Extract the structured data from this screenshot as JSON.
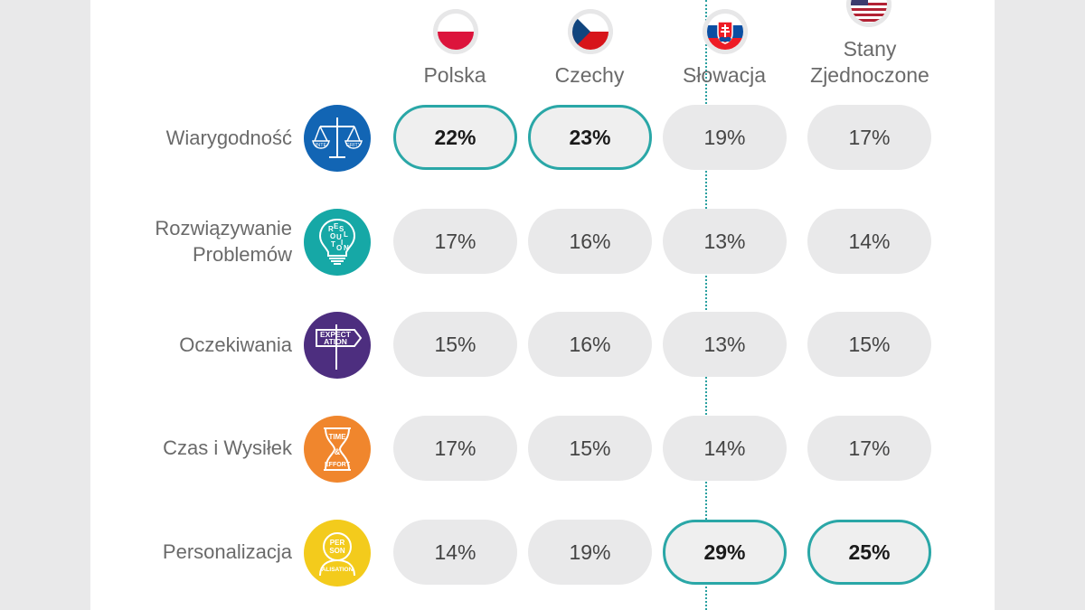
{
  "chart_data": {
    "type": "table",
    "columns": [
      "Polska",
      "Czechy",
      "Słowacja",
      "Stany Zjednoczone"
    ],
    "column_label_lines": [
      [
        "Polska"
      ],
      [
        "Czechy"
      ],
      [
        "Słowacja"
      ],
      [
        "Stany",
        "Zjednoczone"
      ]
    ],
    "rows": [
      {
        "label_lines": [
          "Wiarygodność"
        ],
        "icon": "integrity-scales-icon",
        "icon_color": "#1265b4",
        "values": [
          "22%",
          "23%",
          "19%",
          "17%"
        ],
        "highlight": [
          true,
          true,
          false,
          false
        ]
      },
      {
        "label_lines": [
          "Rozwiązywanie",
          "Problemów"
        ],
        "icon": "resolution-lightbulb-icon",
        "icon_color": "#16a8a6",
        "values": [
          "17%",
          "16%",
          "13%",
          "14%"
        ],
        "highlight": [
          false,
          false,
          false,
          false
        ]
      },
      {
        "label_lines": [
          "Oczekiwania"
        ],
        "icon": "expectation-signpost-icon",
        "icon_color": "#4d2e7f",
        "values": [
          "15%",
          "16%",
          "13%",
          "15%"
        ],
        "highlight": [
          false,
          false,
          false,
          false
        ]
      },
      {
        "label_lines": [
          "Czas i Wysiłek"
        ],
        "icon": "time-effort-hourglass-icon",
        "icon_color": "#f0862d",
        "values": [
          "17%",
          "15%",
          "14%",
          "17%"
        ],
        "highlight": [
          false,
          false,
          false,
          false
        ]
      },
      {
        "label_lines": [
          "Personalizacja"
        ],
        "icon": "personalisation-head-icon",
        "icon_color": "#f3cb1c",
        "values": [
          "14%",
          "19%",
          "29%",
          "25%"
        ],
        "highlight": [
          false,
          false,
          true,
          true
        ]
      }
    ]
  },
  "colors": {
    "highlight_border": "#2aa7a7",
    "pill_fill": "#e9e9ea",
    "divider": "#2aa0a0"
  },
  "icon_texts": {
    "integrity_left": "INTE",
    "integrity_right": "GRITY",
    "resolution_letters": [
      "R",
      "E",
      "S",
      "O",
      "L",
      "U",
      "T",
      "I",
      "O",
      "N"
    ],
    "expectation_line1": "EXPECT",
    "expectation_line2": "ATION",
    "time_top": "TIME",
    "time_mid": "&",
    "time_bottom": "EFFORT",
    "person_top": "PER",
    "person_mid": "SON",
    "person_bottom": "ALISATION"
  }
}
